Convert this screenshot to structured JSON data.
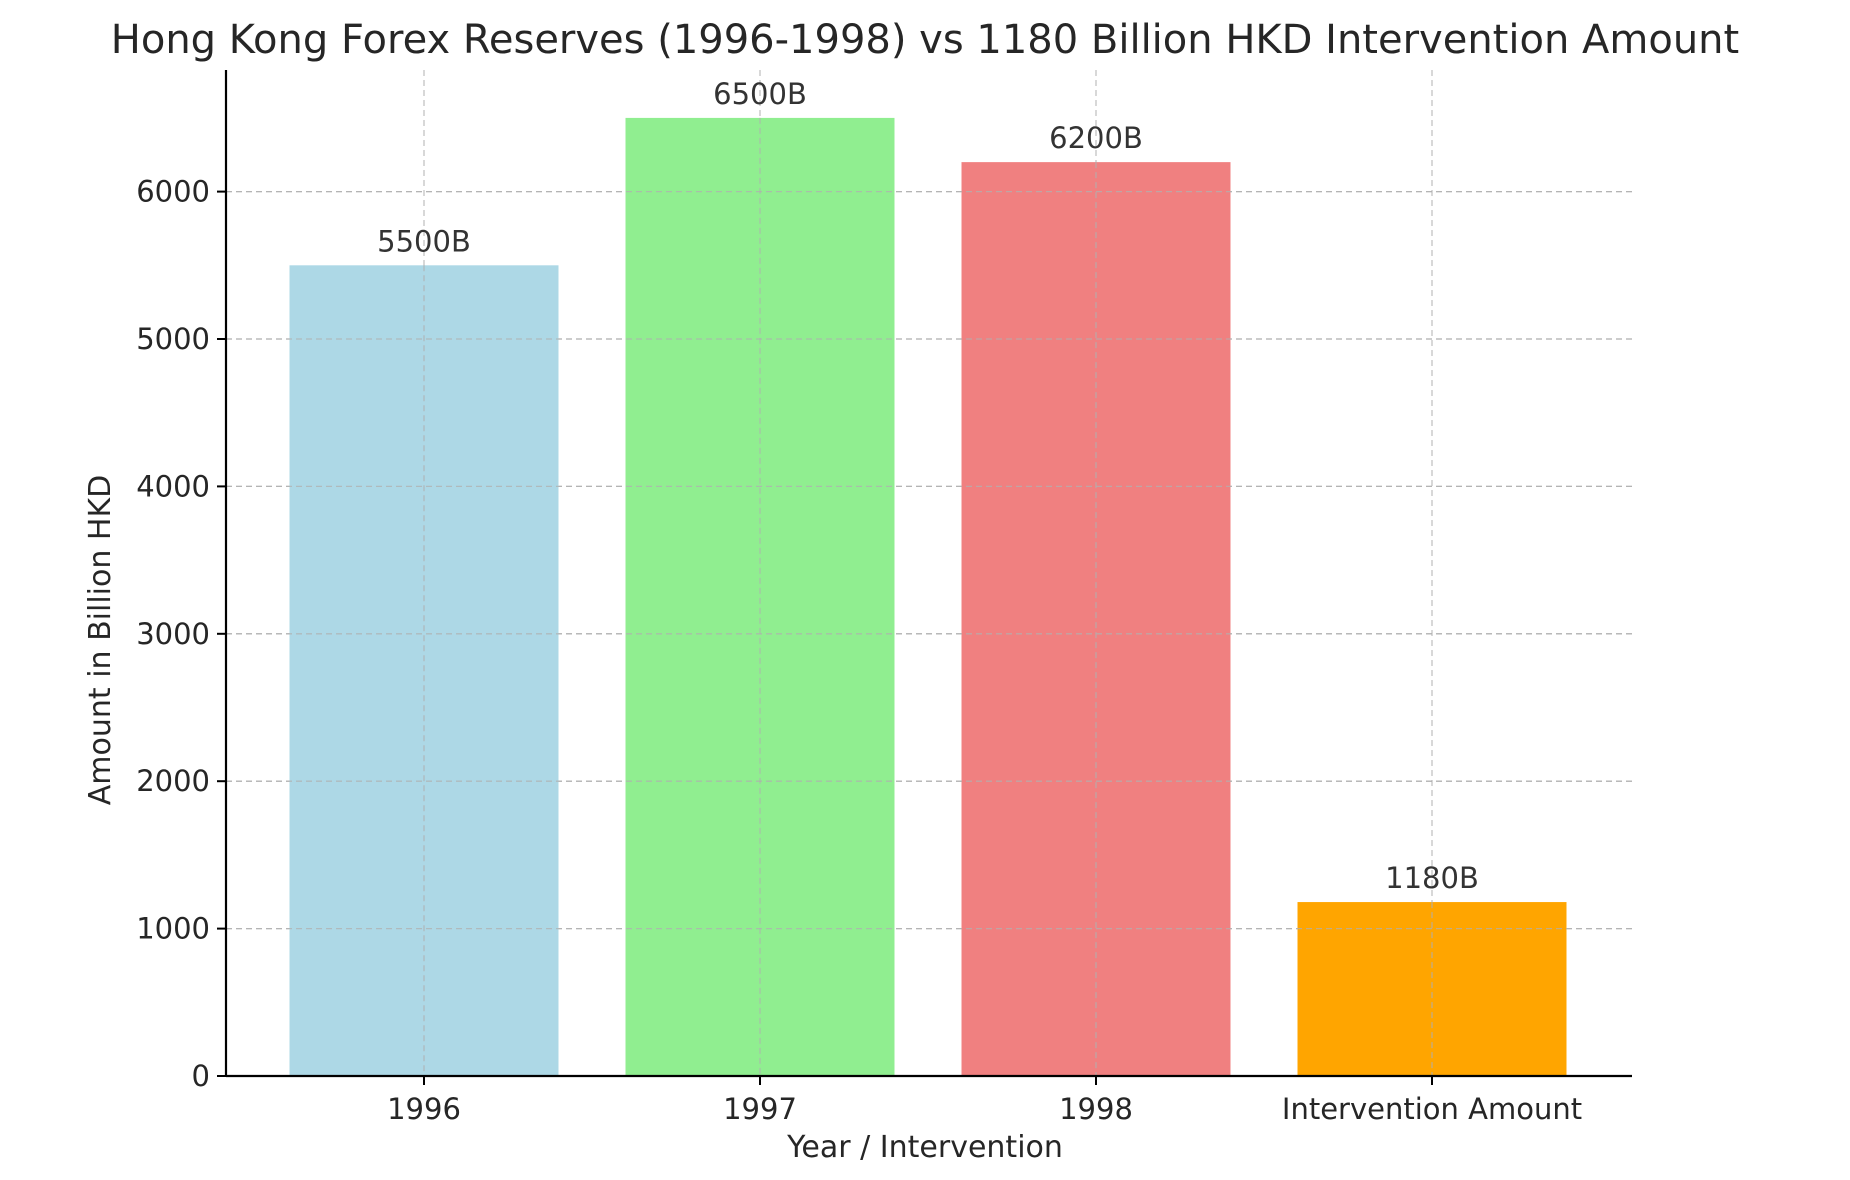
{
  "chart_data": {
    "type": "bar",
    "title": "Hong Kong Forex Reserves (1996-1998) vs 1180 Billion HKD Intervention Amount",
    "xlabel": "Year / Intervention",
    "ylabel": "Amount in Billion HKD",
    "categories": [
      "1996",
      "1997",
      "1998",
      "Intervention Amount"
    ],
    "values": [
      5500,
      6500,
      6200,
      1180
    ],
    "data_labels": [
      "5500B",
      "6500B",
      "6200B",
      "1180B"
    ],
    "bar_colors": [
      "#add8e6",
      "#90ee90",
      "#f08080",
      "#ffa500"
    ],
    "ylim": [
      0,
      6825
    ],
    "yticks": [
      0,
      1000,
      2000,
      3000,
      4000,
      5000,
      6000
    ],
    "ytick_labels": [
      "0",
      "1000",
      "2000",
      "3000",
      "4000",
      "5000",
      "6000"
    ],
    "grid": true
  }
}
